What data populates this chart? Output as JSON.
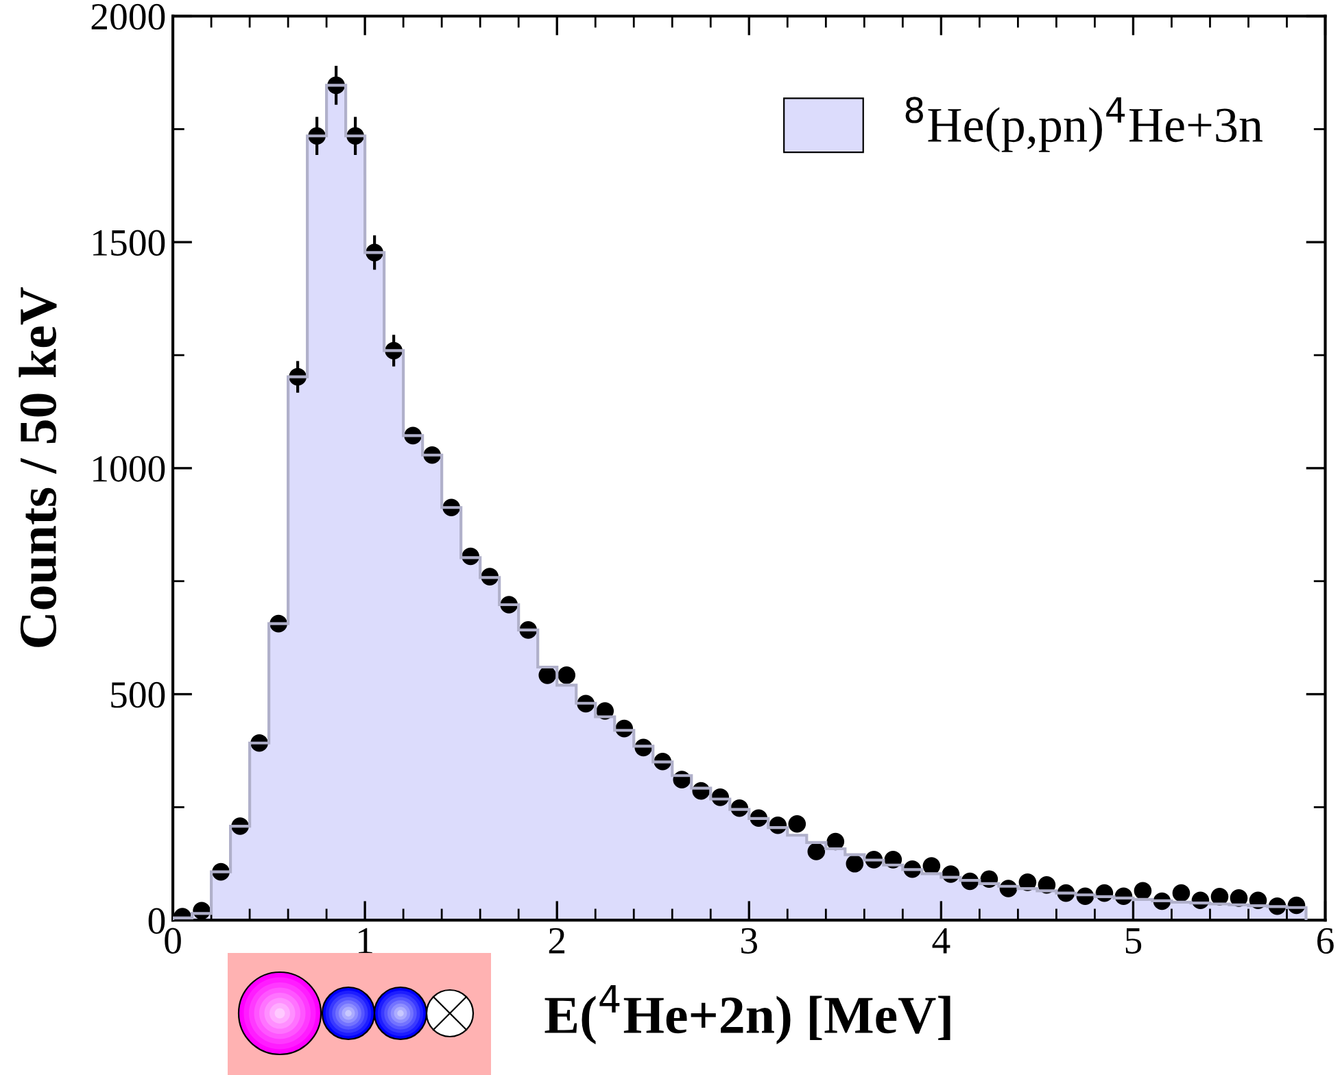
{
  "chart_data": {
    "type": "histogram",
    "xlabel": "E($^{4}$He+2n) [MeV]",
    "ylabel": "Counts / 50 keV",
    "bins": [
      0,
      0.1,
      0.2,
      0.3,
      0.4,
      0.5,
      0.6,
      0.7,
      0.8,
      0.9,
      1.0,
      1.1,
      1.2,
      1.3,
      1.4,
      1.5,
      1.6,
      1.7,
      1.8,
      1.9,
      2.0,
      2.1,
      2.2,
      2.3,
      2.4,
      2.5,
      2.6,
      2.7,
      2.8,
      2.9,
      3.0,
      3.1,
      3.2,
      3.3,
      3.4,
      3.5,
      3.6,
      3.7,
      3.8,
      3.9,
      4.0,
      4.1,
      4.2,
      4.3,
      4.4,
      4.5,
      4.6,
      4.7,
      4.8,
      4.9,
      5.0,
      5.1,
      5.2,
      5.3,
      5.4,
      5.5,
      5.6,
      5.7,
      5.8,
      5.9
    ],
    "series": [
      {
        "type": "histogram",
        "name": "$^{8}$He(p,pn)$^{4}$He+3n",
        "color": "#dcdcfc",
        "values": [
          5,
          15,
          107,
          208,
          392,
          656,
          1202,
          1735,
          1847,
          1735,
          1477,
          1260,
          1072,
          1029,
          913,
          802,
          758,
          698,
          642,
          560,
          520,
          480,
          450,
          420,
          385,
          350,
          320,
          292,
          268,
          245,
          225,
          205,
          188,
          172,
          158,
          145,
          133,
          122,
          112,
          103,
          95,
          88,
          81,
          75,
          70,
          65,
          60,
          56,
          52,
          49,
          46,
          43,
          40,
          38,
          36,
          34,
          32,
          30,
          28
        ]
      },
      {
        "type": "scatter",
        "color": "#000000",
        "x": [
          0.05,
          0.15,
          0.25,
          0.35,
          0.45,
          0.55,
          0.65,
          0.75,
          0.85,
          0.95,
          1.05,
          1.15,
          1.25,
          1.35,
          1.45,
          1.55,
          1.65,
          1.75,
          1.85,
          1.95,
          2.05,
          2.15,
          2.25,
          2.35,
          2.45,
          2.55,
          2.65,
          2.75,
          2.85,
          2.95,
          3.05,
          3.15,
          3.25,
          3.35,
          3.45,
          3.55,
          3.65,
          3.75,
          3.85,
          3.95,
          4.05,
          4.15,
          4.25,
          4.35,
          4.45,
          4.55,
          4.65,
          4.75,
          4.85,
          4.95,
          5.05,
          5.15,
          5.25,
          5.35,
          5.45,
          5.55,
          5.65,
          5.75,
          5.85
        ],
        "values": [
          8,
          21,
          107,
          208,
          392,
          656,
          1202,
          1735,
          1847,
          1735,
          1477,
          1260,
          1072,
          1029,
          913,
          805,
          760,
          698,
          642,
          542,
          542,
          479,
          463,
          424,
          382,
          351,
          311,
          286,
          272,
          248,
          226,
          210,
          213,
          152,
          174,
          125,
          134,
          134,
          113,
          120,
          102,
          86,
          91,
          70,
          84,
          78,
          60,
          53,
          60,
          53,
          65,
          42,
          60,
          44,
          52,
          49,
          44,
          31,
          33
        ],
        "errors": [
          null,
          null,
          null,
          null,
          null,
          null,
          35,
          42,
          43,
          42,
          38,
          35,
          null,
          null,
          null,
          null,
          null,
          null,
          null,
          null,
          null,
          null,
          null,
          null,
          null,
          null,
          null,
          null,
          null,
          null,
          null,
          null,
          null,
          null,
          null,
          null,
          null,
          null,
          null,
          null,
          null,
          null,
          null,
          null,
          null,
          null,
          null,
          null,
          null,
          null,
          null,
          null,
          null,
          null,
          null,
          null,
          null,
          null,
          null
        ]
      }
    ],
    "xlim": [
      0,
      6
    ],
    "xticks": [
      0,
      1,
      2,
      3,
      4,
      5,
      6
    ],
    "ylim": [
      0,
      2000
    ],
    "yticks": [
      0,
      500,
      1000,
      1500,
      2000
    ],
    "legend": "top right",
    "marker": "circle",
    "grid": false
  }
}
